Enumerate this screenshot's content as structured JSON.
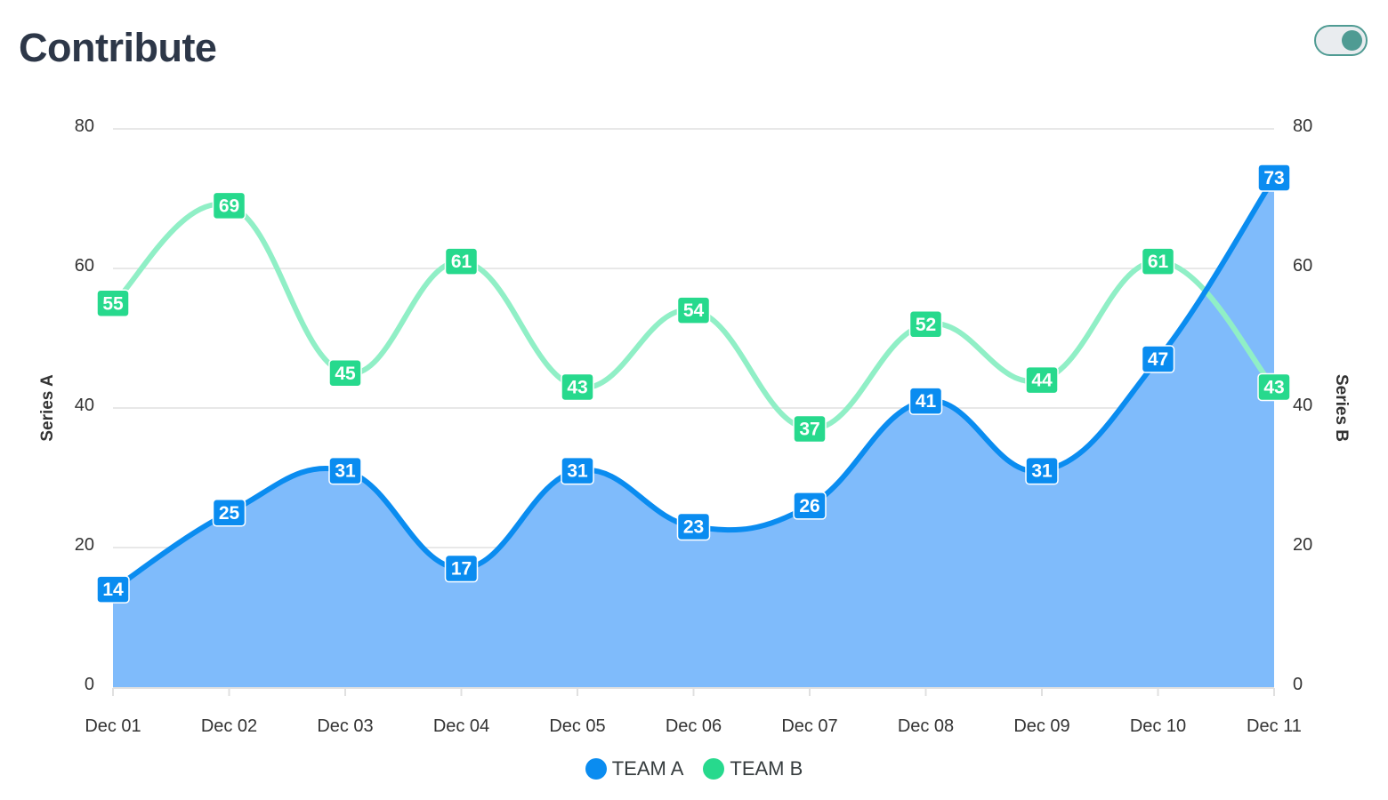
{
  "header": {
    "title": "Contribute",
    "toggle_on": true
  },
  "colors": {
    "team_a": "#0a8cf0",
    "team_a_area": "#7fbbfb",
    "team_b": "#90efc6",
    "team_b_label": "#27d98d",
    "grid": "#e0e0e0",
    "toggle": "#4f9b93"
  },
  "chart_data": {
    "type": "area",
    "categories": [
      "Dec 01",
      "Dec 02",
      "Dec 03",
      "Dec 04",
      "Dec 05",
      "Dec 06",
      "Dec 07",
      "Dec 08",
      "Dec 09",
      "Dec 10",
      "Dec 11"
    ],
    "series": [
      {
        "name": "TEAM A",
        "type": "area",
        "axis": "left",
        "values": [
          14,
          25,
          31,
          17,
          31,
          23,
          26,
          41,
          31,
          47,
          73
        ]
      },
      {
        "name": "TEAM B",
        "type": "line",
        "axis": "right",
        "values": [
          55,
          69,
          45,
          61,
          43,
          54,
          37,
          52,
          44,
          61,
          43
        ]
      }
    ],
    "y_left": {
      "label": "Series A",
      "ylim": [
        0,
        80
      ],
      "ticks": [
        "0",
        "20",
        "40",
        "60",
        "80"
      ]
    },
    "y_right": {
      "label": "Series B",
      "ylim": [
        0,
        80
      ],
      "ticks": [
        "0",
        "20",
        "40",
        "60",
        "80"
      ]
    },
    "grid": true,
    "legend_position": "bottom-center",
    "data_labels": true,
    "curve": "smooth"
  }
}
